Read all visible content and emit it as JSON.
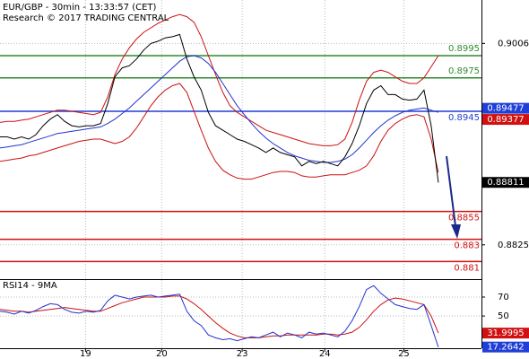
{
  "chart_data": [
    {
      "type": "line",
      "title": "EUR/GBP - 30min - 13:33:57 (CET)",
      "subtitle": "Research © 2017 TRADING CENTRAL",
      "x": [
        0,
        1,
        2,
        3,
        4,
        5,
        6,
        7,
        8,
        9,
        10,
        11,
        12,
        13,
        14,
        15,
        16,
        17,
        18,
        19,
        20,
        21,
        22,
        23,
        24,
        25,
        26,
        27,
        28,
        29,
        30,
        31,
        32,
        33,
        34,
        35,
        36,
        37,
        38,
        39,
        40,
        41,
        42,
        43,
        44,
        45,
        46,
        47,
        48,
        49,
        50,
        51,
        52,
        53,
        54,
        55,
        56,
        57,
        58,
        59,
        60,
        61
      ],
      "xlim": [
        0,
        67
      ],
      "ylim": [
        0.8795,
        0.9045
      ],
      "yticks": [
        0.9006,
        0.8825
      ],
      "grid": true,
      "series": [
        {
          "color": "#000000",
          "values": [
            0.8922,
            0.8922,
            0.892,
            0.8922,
            0.892,
            0.8924,
            0.8932,
            0.8938,
            0.8942,
            0.8936,
            0.8932,
            0.8931,
            0.8932,
            0.8932,
            0.8934,
            0.8952,
            0.8976,
            0.8984,
            0.8986,
            0.8992,
            0.9,
            0.9006,
            0.9008,
            0.9011,
            0.9012,
            0.9014,
            0.8992,
            0.8976,
            0.8964,
            0.8944,
            0.8932,
            0.8928,
            0.8924,
            0.892,
            0.8918,
            0.8915,
            0.8912,
            0.8908,
            0.8912,
            0.8908,
            0.8906,
            0.8904,
            0.8896,
            0.89,
            0.8898,
            0.89,
            0.8898,
            0.8896,
            0.8904,
            0.8916,
            0.8932,
            0.8952,
            0.8964,
            0.8968,
            0.896,
            0.896,
            0.8956,
            0.8955,
            0.8956,
            0.8964,
            0.8932,
            0.8881
          ]
        },
        {
          "color": "#2233cc",
          "values": [
            0.8912,
            0.8913,
            0.8914,
            0.8915,
            0.8917,
            0.8919,
            0.8921,
            0.8923,
            0.8925,
            0.8926,
            0.8927,
            0.8928,
            0.8929,
            0.893,
            0.8931,
            0.8934,
            0.8938,
            0.8943,
            0.8948,
            0.8954,
            0.896,
            0.8966,
            0.8972,
            0.8978,
            0.8984,
            0.899,
            0.8994,
            0.8995,
            0.8993,
            0.8988,
            0.898,
            0.897,
            0.896,
            0.895,
            0.8942,
            0.8934,
            0.8927,
            0.8921,
            0.8916,
            0.8912,
            0.8908,
            0.8905,
            0.8903,
            0.8901,
            0.89,
            0.8899,
            0.8899,
            0.89,
            0.8902,
            0.8906,
            0.8912,
            0.8919,
            0.8926,
            0.8932,
            0.8937,
            0.8941,
            0.8944,
            0.8946,
            0.8947,
            0.8948,
            0.8946,
            0.8944
          ]
        },
        {
          "color": "#cc1111",
          "values": [
            0.8935,
            0.8936,
            0.8936,
            0.8937,
            0.8938,
            0.894,
            0.8942,
            0.8944,
            0.8946,
            0.8946,
            0.8945,
            0.8944,
            0.8943,
            0.8942,
            0.8944,
            0.8958,
            0.8978,
            0.8992,
            0.9002,
            0.901,
            0.9016,
            0.902,
            0.9024,
            0.9027,
            0.903,
            0.9032,
            0.903,
            0.9025,
            0.9012,
            0.8995,
            0.8978,
            0.8962,
            0.895,
            0.8944,
            0.894,
            0.8936,
            0.8932,
            0.8928,
            0.8926,
            0.8924,
            0.8922,
            0.892,
            0.8918,
            0.8916,
            0.8915,
            0.8914,
            0.8914,
            0.8915,
            0.892,
            0.8935,
            0.8955,
            0.8972,
            0.898,
            0.8982,
            0.898,
            0.8976,
            0.8972,
            0.897,
            0.897,
            0.8975,
            0.8985,
            0.8995
          ]
        },
        {
          "color": "#cc1111",
          "values": [
            0.89,
            0.8901,
            0.8902,
            0.8903,
            0.8905,
            0.8906,
            0.8908,
            0.891,
            0.8912,
            0.8914,
            0.8916,
            0.8918,
            0.8919,
            0.892,
            0.892,
            0.8918,
            0.8916,
            0.8918,
            0.8922,
            0.893,
            0.894,
            0.895,
            0.8958,
            0.8964,
            0.8968,
            0.897,
            0.8962,
            0.8945,
            0.8928,
            0.8912,
            0.89,
            0.8892,
            0.8888,
            0.8885,
            0.8884,
            0.8884,
            0.8886,
            0.8888,
            0.889,
            0.8891,
            0.8891,
            0.889,
            0.8887,
            0.8886,
            0.8886,
            0.8887,
            0.8888,
            0.8888,
            0.8888,
            0.889,
            0.8892,
            0.8896,
            0.8905,
            0.8918,
            0.8928,
            0.8934,
            0.8938,
            0.8941,
            0.8942,
            0.894,
            0.892,
            0.889
          ]
        }
      ],
      "levels": [
        {
          "value": 0.8995,
          "color": "#2e8b2e"
        },
        {
          "value": 0.8975,
          "color": "#2e8b2e"
        },
        {
          "value": 0.8945,
          "color": "#1f3fd6"
        },
        {
          "value": 0.8855,
          "color": "#d11111"
        },
        {
          "value": 0.883,
          "color": "#d11111"
        },
        {
          "value": 0.881,
          "color": "#d11111"
        }
      ],
      "markers": [
        {
          "value": 0.89477,
          "color": "#1f3fd6"
        },
        {
          "value": 0.89377,
          "color": "#d11111"
        },
        {
          "value": 0.88811,
          "color": "#000000"
        }
      ]
    },
    {
      "type": "line",
      "title": "RSI14 - 9MA",
      "x": [
        0,
        1,
        2,
        3,
        4,
        5,
        6,
        7,
        8,
        9,
        10,
        11,
        12,
        13,
        14,
        15,
        16,
        17,
        18,
        19,
        20,
        21,
        22,
        23,
        24,
        25,
        26,
        27,
        28,
        29,
        30,
        31,
        32,
        33,
        34,
        35,
        36,
        37,
        38,
        39,
        40,
        41,
        42,
        43,
        44,
        45,
        46,
        47,
        48,
        49,
        50,
        51,
        52,
        53,
        54,
        55,
        56,
        57,
        58,
        59,
        60,
        61
      ],
      "xlim": [
        0,
        67
      ],
      "xticks": [
        {
          "value": 11.9,
          "label": "19"
        },
        {
          "value": 22.5,
          "label": "20"
        },
        {
          "value": 33.7,
          "label": "23"
        },
        {
          "value": 45.2,
          "label": "24"
        },
        {
          "value": 56.2,
          "label": "25"
        }
      ],
      "ylim": [
        16,
        88
      ],
      "yticks": [
        70,
        50
      ],
      "grid": true,
      "series": [
        {
          "color": "#2233cc",
          "values": [
            55,
            54,
            52,
            55,
            53,
            56,
            60,
            63,
            62,
            57,
            54,
            53,
            55,
            54,
            56,
            66,
            72,
            70,
            68,
            70,
            71,
            72,
            70,
            71,
            72,
            73,
            55,
            45,
            40,
            30,
            27,
            25,
            26,
            24,
            26,
            28,
            27,
            30,
            33,
            28,
            32,
            30,
            27,
            33,
            31,
            32,
            30,
            28,
            34,
            45,
            60,
            78,
            82,
            74,
            68,
            62,
            60,
            58,
            57,
            62,
            40,
            17
          ]
        },
        {
          "color": "#cc1111",
          "values": [
            57,
            56,
            55,
            55,
            54,
            55,
            56,
            57,
            58,
            59,
            58,
            57,
            56,
            55,
            55,
            58,
            61,
            64,
            66,
            68,
            70,
            70,
            70,
            70,
            71,
            71,
            68,
            63,
            57,
            50,
            43,
            37,
            32,
            29,
            27,
            27,
            27,
            28,
            29,
            29,
            30,
            30,
            30,
            30,
            30,
            31,
            31,
            30,
            31,
            33,
            38,
            46,
            55,
            62,
            67,
            69,
            68,
            66,
            64,
            62,
            50,
            32
          ]
        }
      ],
      "markers": [
        {
          "value": 31.9995,
          "color": "#d11111"
        },
        {
          "value": 17.2642,
          "color": "#1f3fd6"
        }
      ]
    }
  ]
}
